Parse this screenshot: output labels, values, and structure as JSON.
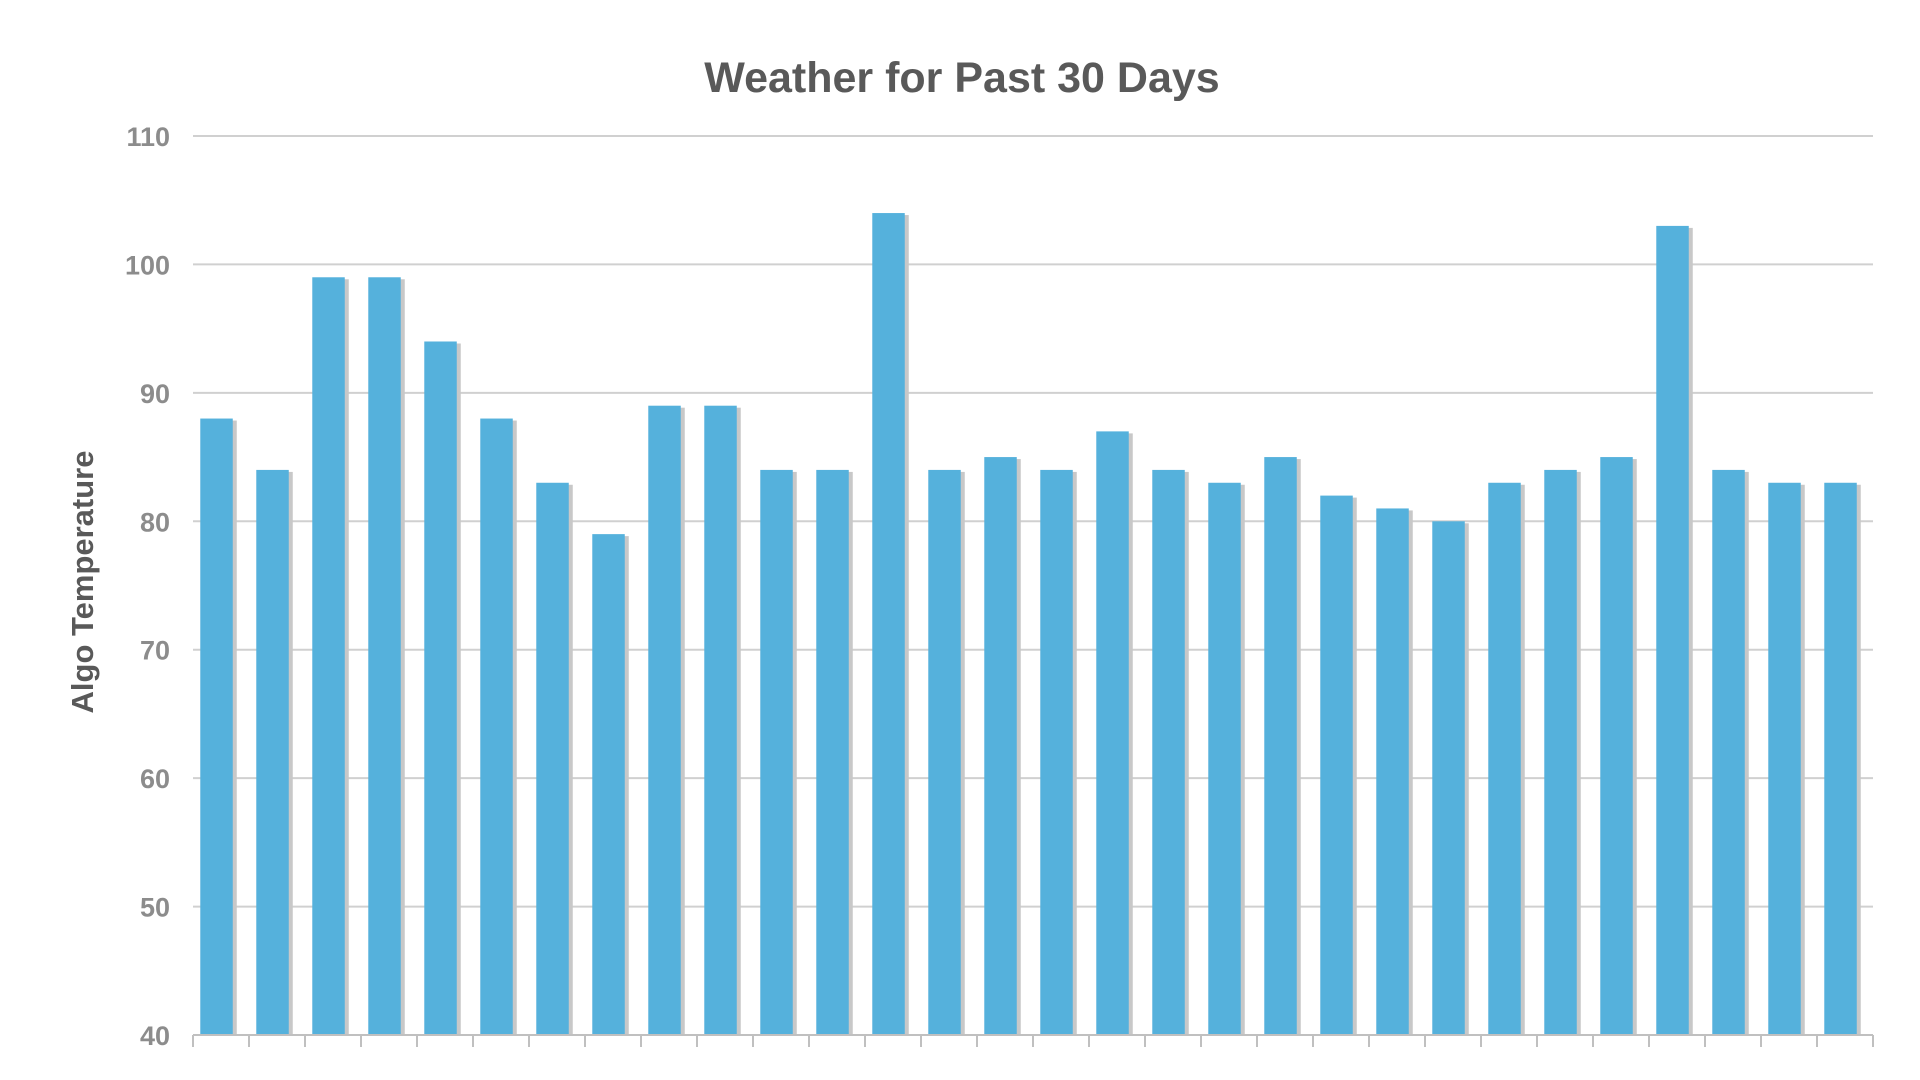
{
  "chart_data": {
    "type": "bar",
    "title": "Weather for Past 30 Days",
    "xlabel": "",
    "ylabel": "Algo Temperature",
    "ylim": [
      40,
      110
    ],
    "yticks": [
      40,
      50,
      60,
      70,
      80,
      90,
      100,
      110
    ],
    "grid": true,
    "legend": "none",
    "colors": {
      "bar": "#55b1dc",
      "bar_shadow": "#c8c8c8",
      "grid": "#d0d0d0",
      "axis": "#c0c0c0"
    },
    "series": [
      {
        "values": [
          88,
          84,
          99,
          99,
          94,
          88,
          83,
          79,
          89,
          89,
          84,
          84,
          104,
          84,
          85,
          84,
          87,
          84,
          83,
          85,
          82,
          81,
          80,
          83,
          84,
          85,
          103,
          84,
          83,
          83
        ]
      }
    ]
  }
}
